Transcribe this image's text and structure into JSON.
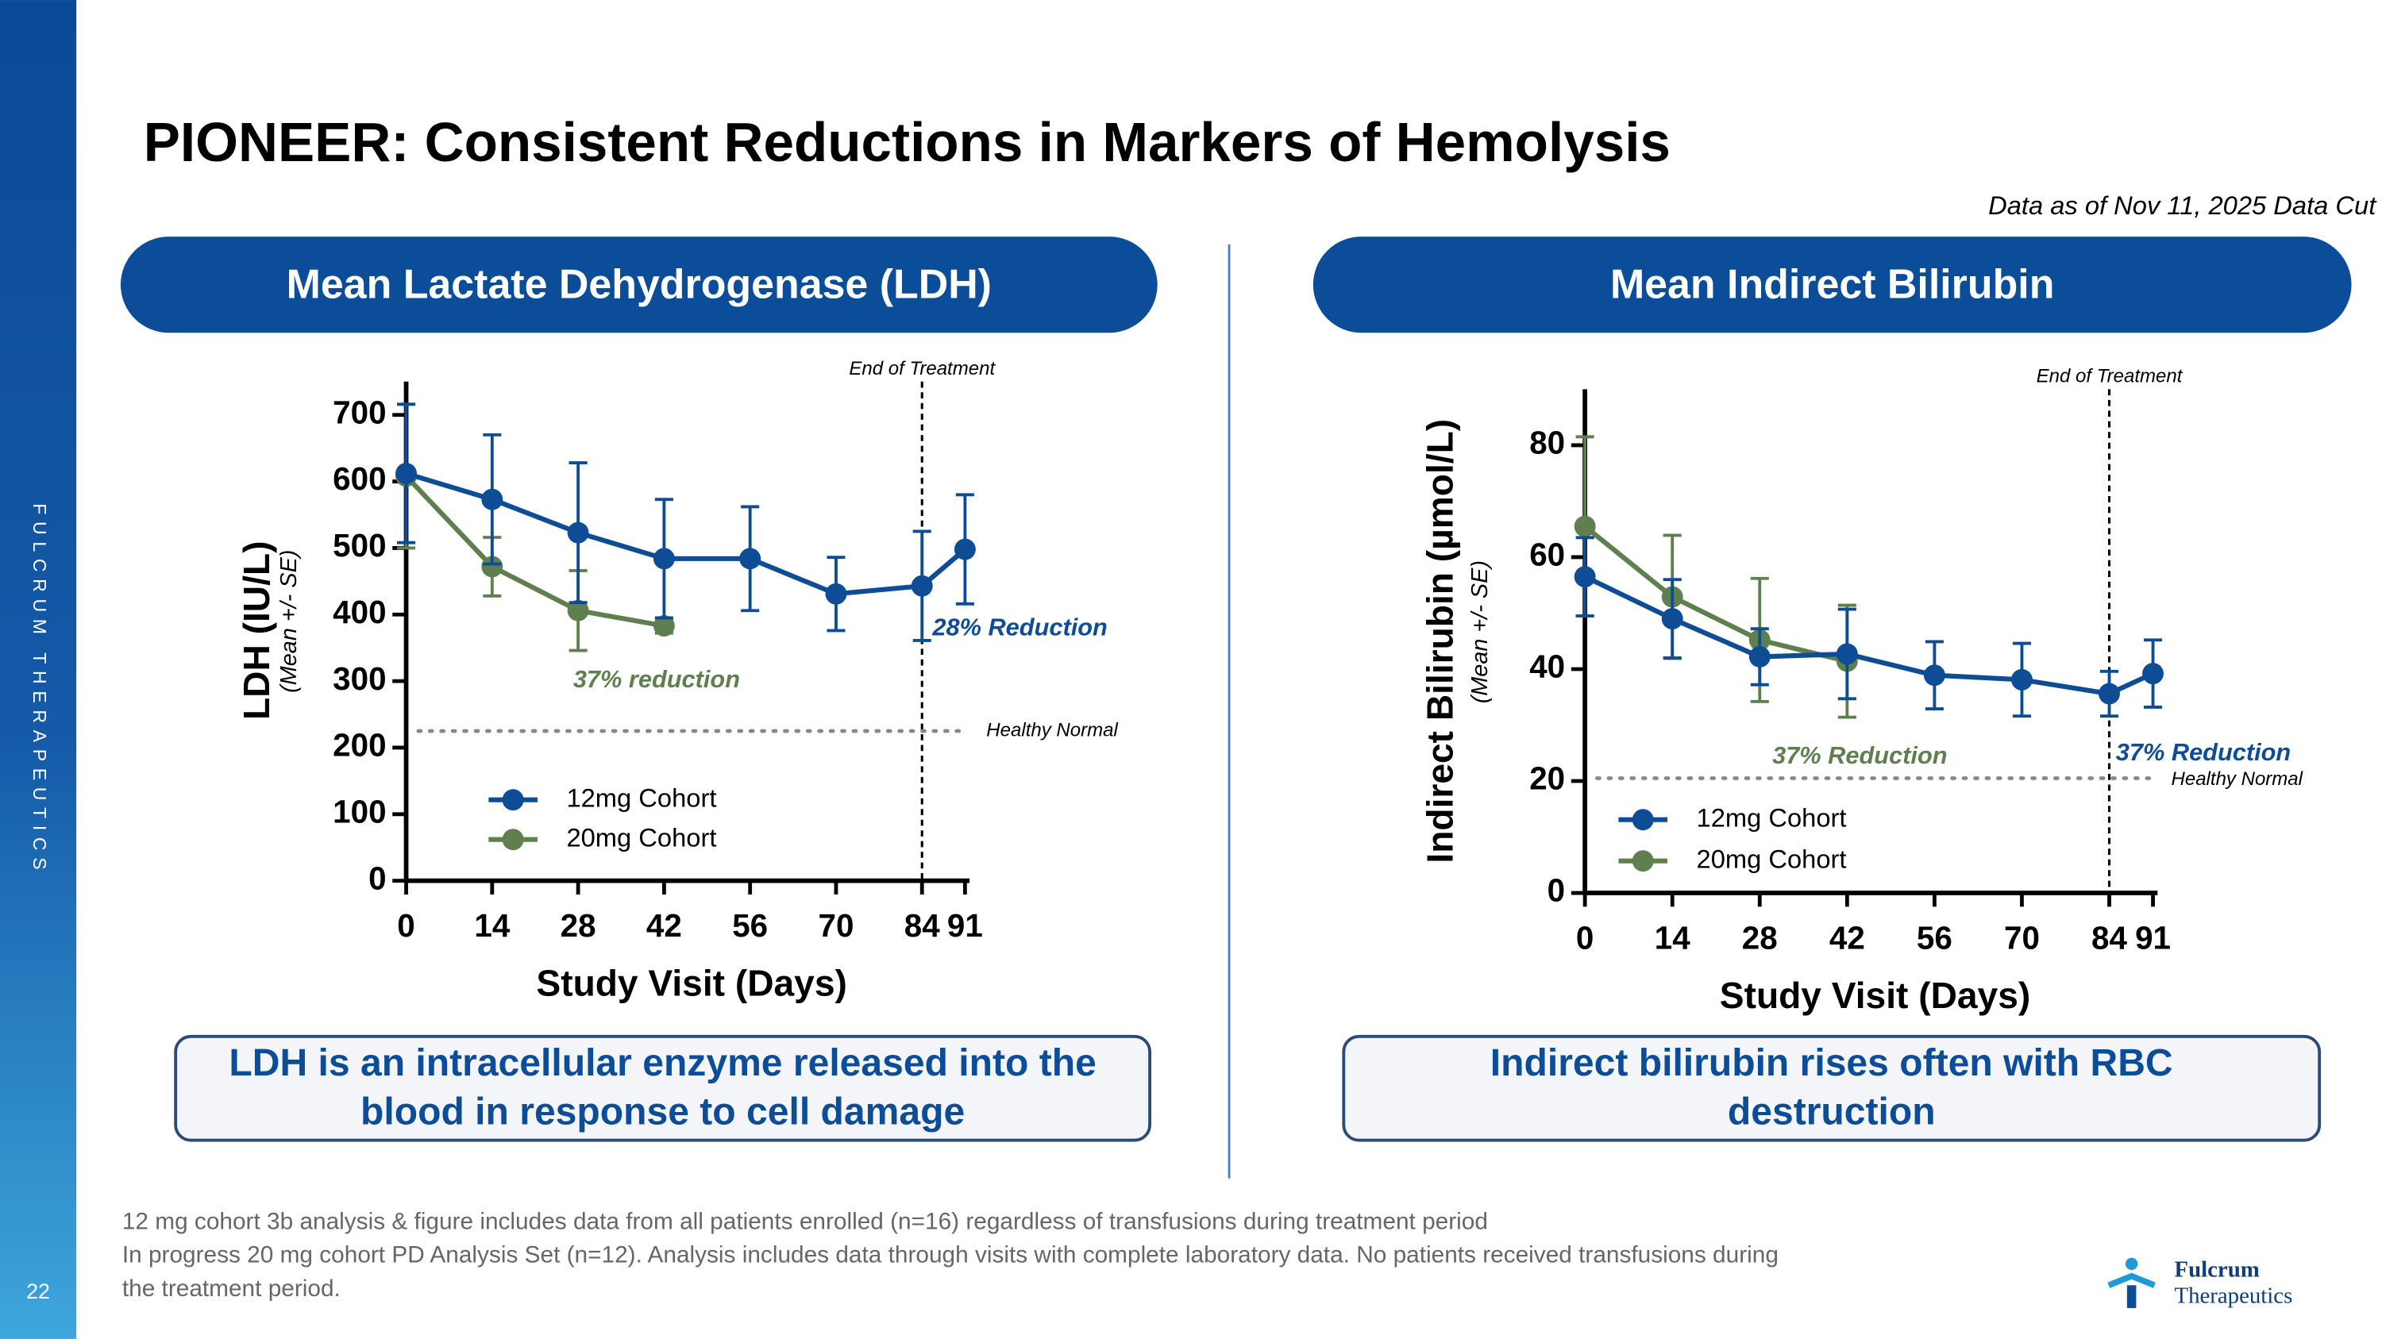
{
  "slide": {
    "title": "PIONEER: Consistent Reductions in Markers of Hemolysis",
    "data_note": "Data as of Nov 11, 2025 Data Cut",
    "sidebar": "FULCRUM THERAPEUTICS",
    "page_number": "22",
    "footnotes": [
      "12 mg cohort 3b analysis & figure includes data from all patients enrolled (n=16) regardless of transfusions during treatment period",
      "In progress 20 mg cohort PD Analysis Set (n=12). Analysis includes data through visits with complete laboratory data. No patients received transfusions during",
      "the treatment period."
    ],
    "logo": [
      "Fulcrum",
      "Therapeutics"
    ]
  },
  "chart_data": [
    {
      "type": "line",
      "title": "Mean Lactate Dehydrogenase (LDH)",
      "y_label": "LDH (IU/L)",
      "y_sublabel": "(Mean +/-  SE)",
      "x_label": "Study Visit (Days)",
      "x": [
        0,
        14,
        28,
        42,
        56,
        70,
        84,
        91
      ],
      "xlim": [
        0,
        91
      ],
      "xticks": [
        0,
        14,
        28,
        42,
        56,
        70,
        84,
        91
      ],
      "ylim": [
        0,
        750
      ],
      "yticks": [
        0,
        100,
        200,
        300,
        400,
        500,
        600,
        700
      ],
      "legend": "lower left",
      "series": [
        {
          "name": "12mg Cohort",
          "color": "#0e4c96",
          "values": [
            612,
            573,
            523,
            484,
            484,
            431,
            443,
            498
          ],
          "errors": [
            104,
            97,
            105,
            89,
            78,
            55,
            82,
            82
          ]
        },
        {
          "name": "20mg Cohort",
          "color": "#5f7f4f",
          "values": [
            608,
            472,
            406,
            383,
            null,
            null,
            null,
            null
          ],
          "errors": [
            108,
            44,
            60,
            11,
            null,
            null,
            null,
            null
          ]
        }
      ],
      "end_of_treatment": {
        "x": 84,
        "label": "End of Treatment"
      },
      "healthy_normal": {
        "y": 225,
        "label": "Healthy Normal"
      },
      "annotations": [
        {
          "text": "37% reduction",
          "color": "#5f7f4f"
        },
        {
          "text": "28% Reduction",
          "color": "#0e4c96"
        }
      ],
      "caption": [
        "LDH is an intracellular enzyme released into the",
        "blood in response to cell damage"
      ]
    },
    {
      "type": "line",
      "title": "Mean Indirect Bilirubin",
      "y_label": "Indirect Bilirubin (µmol/L)",
      "y_sublabel": "(Mean +/-  SE)",
      "x_label": "Study Visit (Days)",
      "x": [
        0,
        14,
        28,
        42,
        56,
        70,
        84,
        91
      ],
      "xlim": [
        0,
        91
      ],
      "xticks": [
        0,
        14,
        28,
        42,
        56,
        70,
        84,
        91
      ],
      "ylim": [
        0,
        90
      ],
      "yticks": [
        0,
        20,
        40,
        60,
        80
      ],
      "legend": "lower left",
      "series": [
        {
          "name": "12mg Cohort",
          "color": "#0e4c96",
          "values": [
            56.5,
            49,
            42.2,
            42.7,
            38.9,
            38.1,
            35.6,
            39.2
          ],
          "errors": [
            7,
            7,
            5,
            8,
            6,
            6.5,
            4,
            6
          ]
        },
        {
          "name": "20mg Cohort",
          "color": "#5f7f4f",
          "values": [
            65.5,
            52.9,
            45.2,
            41.4,
            null,
            null,
            null,
            null
          ],
          "errors": [
            16,
            11,
            11,
            10,
            null,
            null,
            null,
            null
          ]
        }
      ],
      "end_of_treatment": {
        "x": 84,
        "label": "End of Treatment"
      },
      "healthy_normal": {
        "y": 20.5,
        "label": "Healthy Normal"
      },
      "annotations": [
        {
          "text": "37% Reduction",
          "color": "#5f7f4f"
        },
        {
          "text": "37% Reduction",
          "color": "#0e4c96"
        }
      ],
      "caption": [
        "Indirect bilirubin rises often with RBC",
        "destruction"
      ]
    }
  ]
}
